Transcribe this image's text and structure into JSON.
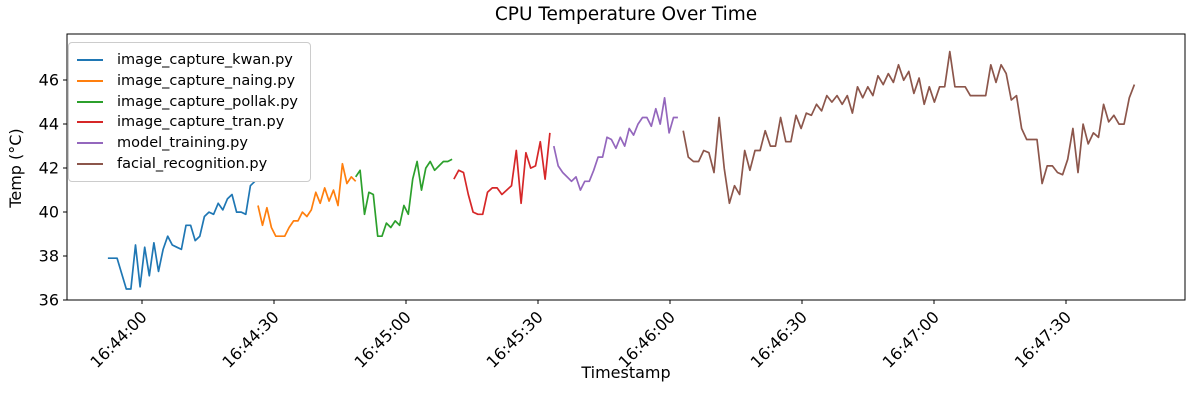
{
  "chart_data": {
    "type": "line",
    "title": "CPU Temperature Over Time",
    "xlabel": "Timestamp",
    "ylabel": "Temp (°C)",
    "grid": false,
    "legend_position": "upper left",
    "x_axis_encoding": "seconds relative to 16:44:00",
    "xlim": [
      -17,
      237
    ],
    "ylim": [
      36,
      48.1
    ],
    "yticks": [
      36,
      38,
      40,
      42,
      44,
      46
    ],
    "xticks": {
      "seconds": [
        0,
        30,
        60,
        90,
        120,
        150,
        180,
        210
      ],
      "labels": [
        "16:44:00",
        "16:44:30",
        "16:45:00",
        "16:45:30",
        "16:46:00",
        "16:46:30",
        "16:47:00",
        "16:47:30"
      ]
    },
    "series": [
      {
        "name": "image_capture_kwan.py",
        "color": "#1f77b4",
        "t_start": -7.7,
        "t_end": 25.7,
        "values": [
          37.9,
          37.9,
          37.9,
          37.2,
          36.5,
          36.5,
          38.5,
          36.6,
          38.4,
          37.1,
          38.6,
          37.3,
          38.3,
          38.9,
          38.5,
          38.4,
          38.3,
          39.4,
          39.4,
          38.7,
          38.9,
          39.8,
          40.0,
          39.9,
          40.4,
          40.1,
          40.6,
          40.8,
          40.0,
          40.0,
          39.9,
          41.2,
          41.4
        ]
      },
      {
        "name": "image_capture_naing.py",
        "color": "#ff7f0e",
        "t_start": 26.4,
        "t_end": 48.6,
        "values": [
          40.3,
          39.4,
          40.2,
          39.3,
          38.9,
          38.9,
          38.9,
          39.3,
          39.6,
          39.6,
          40.0,
          39.8,
          40.1,
          40.9,
          40.4,
          41.1,
          40.5,
          41.0,
          40.3,
          42.2,
          41.3,
          41.6,
          41.4
        ]
      },
      {
        "name": "image_capture_pollak.py",
        "color": "#2ca02c",
        "t_start": 48.6,
        "t_end": 70.5,
        "values": [
          41.6,
          41.9,
          39.9,
          40.9,
          40.8,
          38.9,
          38.9,
          39.5,
          39.3,
          39.6,
          39.4,
          40.3,
          39.9,
          41.5,
          42.3,
          41.0,
          42.0,
          42.3,
          41.9,
          42.1,
          42.3,
          42.3,
          42.4
        ]
      },
      {
        "name": "image_capture_tran.py",
        "color": "#d62728",
        "t_start": 70.9,
        "t_end": 92.7,
        "values": [
          41.5,
          41.9,
          41.8,
          40.8,
          40.0,
          39.9,
          39.9,
          40.9,
          41.1,
          41.1,
          40.8,
          41.0,
          41.2,
          42.8,
          40.4,
          42.7,
          42.0,
          42.1,
          43.2,
          41.5,
          43.6
        ]
      },
      {
        "name": "model_training.py",
        "color": "#9467bd",
        "t_start": 93.6,
        "t_end": 121.8,
        "values": [
          43.0,
          42.1,
          41.8,
          41.6,
          41.4,
          41.6,
          41.0,
          41.4,
          41.4,
          41.9,
          42.5,
          42.5,
          43.4,
          43.3,
          42.9,
          43.4,
          43.0,
          43.8,
          43.5,
          44.0,
          44.3,
          44.3,
          43.9,
          44.7,
          44.0,
          45.2,
          43.6,
          44.3,
          44.3
        ]
      },
      {
        "name": "facial_recognition.py",
        "color": "#8c564b",
        "t_start": 123.0,
        "t_end": 225.5,
        "values": [
          43.7,
          42.5,
          42.3,
          42.3,
          42.8,
          42.7,
          41.8,
          44.3,
          42.0,
          40.4,
          41.2,
          40.8,
          42.8,
          41.9,
          42.8,
          42.8,
          43.7,
          43.0,
          43.0,
          44.3,
          43.2,
          43.2,
          44.4,
          43.8,
          44.5,
          44.4,
          44.9,
          44.6,
          45.3,
          45.0,
          45.3,
          44.9,
          45.3,
          44.5,
          45.7,
          45.2,
          45.7,
          45.3,
          46.2,
          45.8,
          46.3,
          45.9,
          46.7,
          46.0,
          46.4,
          45.4,
          46.1,
          44.9,
          45.7,
          45.0,
          45.7,
          45.7,
          47.3,
          45.7,
          45.7,
          45.7,
          45.3,
          45.3,
          45.3,
          45.3,
          46.7,
          45.9,
          46.7,
          46.3,
          45.1,
          45.3,
          43.8,
          43.3,
          43.3,
          43.3,
          41.3,
          42.1,
          42.1,
          41.8,
          41.7,
          42.4,
          43.8,
          41.8,
          44.0,
          43.1,
          43.6,
          43.4,
          44.9,
          44.1,
          44.4,
          44.0,
          44.0,
          45.2,
          45.8
        ]
      }
    ]
  }
}
